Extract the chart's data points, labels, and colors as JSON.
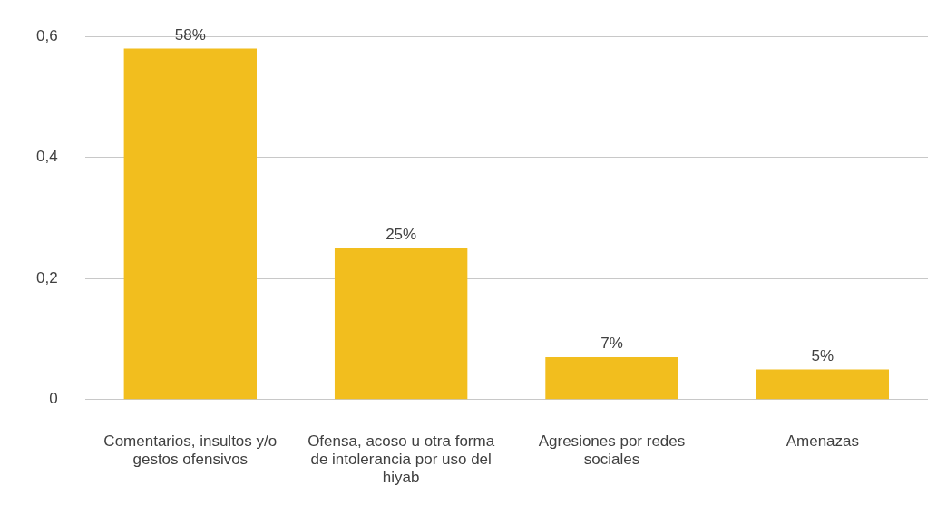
{
  "chart_data": {
    "type": "bar",
    "categories": [
      "Comentarios, insultos y/o gestos ofensivos",
      "Ofensa, acoso u otra forma de intolerancia por uso del hiyab",
      "Agresiones por redes sociales",
      "Amenazas"
    ],
    "values": [
      0.58,
      0.25,
      0.07,
      0.05
    ],
    "value_labels": [
      "58%",
      "25%",
      "7%",
      "5%"
    ],
    "color": "#f2be1e",
    "ylim": [
      0,
      0.6
    ],
    "yticks": [
      0,
      {
        "value": 0.2,
        "label": "0,2"
      },
      {
        "value": 0.4,
        "label": "0,4"
      },
      {
        "value": 0.6,
        "label": "0,6"
      }
    ],
    "grid": "y"
  }
}
